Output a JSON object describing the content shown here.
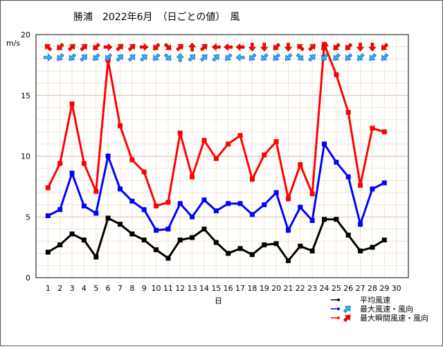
{
  "chart_data": {
    "type": "line",
    "title": "勝浦　2022年6月　（日ごとの値）　風",
    "ylabel": "m/s",
    "xlabel": "日",
    "ylim": [
      0,
      20
    ],
    "yticks": [
      0,
      5,
      10,
      15,
      20
    ],
    "x": [
      1,
      2,
      3,
      4,
      5,
      6,
      7,
      8,
      9,
      10,
      11,
      12,
      13,
      14,
      15,
      16,
      17,
      18,
      19,
      20,
      21,
      22,
      23,
      24,
      25,
      26,
      27,
      28,
      29
    ],
    "xticks": [
      1,
      2,
      3,
      4,
      5,
      6,
      7,
      8,
      9,
      10,
      11,
      12,
      13,
      14,
      15,
      16,
      17,
      18,
      19,
      20,
      21,
      22,
      23,
      24,
      25,
      26,
      27,
      28,
      29,
      30
    ],
    "grid": true,
    "legend_position": "bottom-right",
    "series": [
      {
        "name": "平均風速",
        "color": "#000000",
        "values": [
          2.1,
          2.7,
          3.6,
          3.1,
          1.7,
          4.9,
          4.4,
          3.6,
          3.1,
          2.3,
          1.6,
          3.1,
          3.3,
          4.0,
          2.9,
          2.0,
          2.4,
          1.9,
          2.7,
          2.8,
          1.4,
          2.6,
          2.2,
          4.8,
          4.8,
          3.5,
          2.2,
          2.5,
          3.1
        ]
      },
      {
        "name": "最大風速・風向",
        "color": "#0000ff",
        "arrow_color": "#33aaff",
        "values": [
          5.1,
          5.6,
          8.6,
          5.9,
          5.3,
          10.0,
          7.3,
          6.3,
          5.6,
          3.9,
          4.0,
          6.1,
          5.0,
          6.4,
          5.5,
          6.1,
          6.1,
          5.2,
          6.0,
          7.0,
          3.9,
          5.8,
          4.7,
          11.0,
          9.5,
          8.3,
          4.4,
          7.3,
          7.8
        ],
        "directions": [
          "W",
          "NE",
          "NE",
          "SW",
          "NE",
          "NE",
          "SW",
          "SW",
          "SW",
          "NE",
          "NW",
          "S",
          "SW",
          "SW",
          "SW",
          "NE",
          "E",
          "NE",
          "NE",
          "NE",
          "NE",
          "NW",
          "SW",
          "NE",
          "NE",
          "NE",
          "NE",
          "NE",
          "NE"
        ]
      },
      {
        "name": "最大瞬間風速・風向",
        "color": "#ff0000",
        "arrow_color": "#ff0000",
        "values": [
          7.4,
          9.4,
          14.3,
          9.4,
          7.1,
          17.9,
          12.5,
          9.7,
          8.7,
          5.9,
          6.2,
          11.9,
          8.3,
          11.3,
          9.8,
          11.0,
          11.7,
          8.1,
          10.1,
          11.2,
          6.5,
          9.3,
          6.9,
          19.2,
          16.7,
          13.6,
          7.6,
          12.3,
          12.0
        ],
        "directions": [
          "SE",
          "NE",
          "SW",
          "SW",
          "NE",
          "W",
          "SW",
          "SW",
          "W",
          "NE",
          "NW",
          "SW",
          "S",
          "SW",
          "E",
          "E",
          "E",
          "N",
          "N",
          "NE",
          "N",
          "SE",
          "SW",
          "NE",
          "NE",
          "NE",
          "N",
          "N",
          "NE"
        ]
      }
    ]
  }
}
